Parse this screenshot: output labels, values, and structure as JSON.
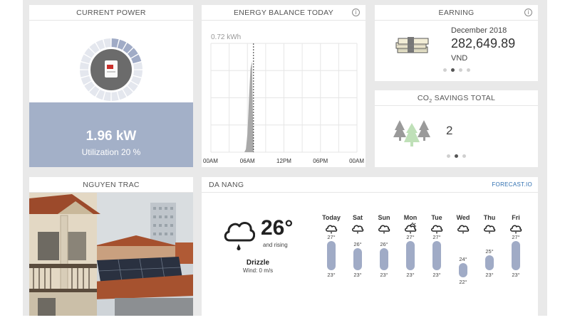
{
  "power": {
    "title": "CURRENT POWER",
    "value": "1.96 kW",
    "utilization": "Utilization 20 %",
    "utilization_fraction": 0.2
  },
  "energy": {
    "title": "ENERGY BALANCE TODAY",
    "ylabel": "0.72 kWh",
    "chart_data": {
      "type": "area",
      "title": "ENERGY BALANCE TODAY",
      "ylabel": "0.72 kWh",
      "x_ticks": [
        "00AM",
        "06AM",
        "12PM",
        "06PM",
        "00AM"
      ],
      "x_hours": [
        5.5,
        5.75,
        6.0,
        6.25,
        6.5,
        6.75,
        7.0
      ],
      "y_kwh": [
        0.0,
        0.02,
        0.12,
        0.35,
        0.55,
        0.6,
        0.0
      ],
      "ylim": [
        0,
        0.72
      ],
      "xlim_hours": [
        0,
        24
      ],
      "current_hour": 7.0,
      "grid": true
    }
  },
  "earning": {
    "title": "EARNING",
    "date": "December 2018",
    "value": "282,649.89",
    "currency": "VND"
  },
  "co2": {
    "title_prefix": "CO",
    "title_sub": "2",
    "title_suffix": " SAVINGS TOTAL",
    "value": "2"
  },
  "photo": {
    "title": "NGUYEN TRAC"
  },
  "weather": {
    "location": "DA NANG",
    "link": "FORECAST.IO",
    "temp": "26°",
    "trend": "and rising",
    "condition": "Drizzle",
    "wind": "Wind: 0 m/s",
    "days": [
      {
        "name": "Today",
        "high": "27°",
        "low": "23°",
        "high_val": 27,
        "low_val": 23,
        "icon": "cloud-icon"
      },
      {
        "name": "Sat",
        "high": "26°",
        "low": "23°",
        "high_val": 26,
        "low_val": 23,
        "icon": "cloud-icon"
      },
      {
        "name": "Sun",
        "high": "26°",
        "low": "23°",
        "high_val": 26,
        "low_val": 23,
        "icon": "cloud-icon"
      },
      {
        "name": "Mon",
        "high": "27°",
        "low": "23°",
        "high_val": 27,
        "low_val": 23,
        "icon": "partly-cloudy-icon"
      },
      {
        "name": "Tue",
        "high": "27°",
        "low": "23°",
        "high_val": 27,
        "low_val": 23,
        "icon": "cloud-icon"
      },
      {
        "name": "Wed",
        "high": "24°",
        "low": "22°",
        "high_val": 24,
        "low_val": 22,
        "icon": "cloud-icon"
      },
      {
        "name": "Thu",
        "high": "25°",
        "low": "23°",
        "high_val": 25,
        "low_val": 23,
        "icon": "cloud-icon"
      },
      {
        "name": "Fri",
        "high": "27°",
        "low": "23°",
        "high_val": 27,
        "low_val": 23,
        "icon": "cloud-icon"
      }
    ]
  },
  "colors": {
    "accent": "#a3b0c8",
    "bar": "#a0abc6",
    "link": "#2f6fb0",
    "chart_fill": "#a9a9a9"
  }
}
